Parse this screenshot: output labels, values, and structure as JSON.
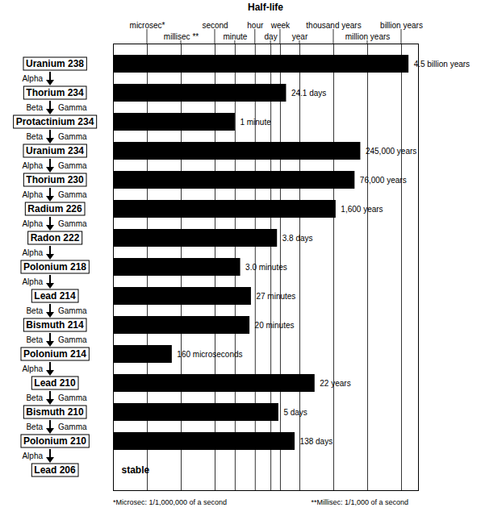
{
  "chart_data": {
    "type": "bar",
    "orientation": "horizontal",
    "log": "x",
    "title": "Half-life",
    "categories": [
      "Uranium 238",
      "Thorium 234",
      "Protactinium 234",
      "Uranium 234",
      "Thorium 230",
      "Radium 226",
      "Radon 222",
      "Polonium 218",
      "Lead 214",
      "Bismuth 214",
      "Polonium 214",
      "Lead 210",
      "Bismuth 210",
      "Polonium 210",
      "Lead 206"
    ],
    "values": [
      142009200000000000,
      2082240,
      60,
      7731612000000,
      2398377600000,
      50492160000,
      328320,
      180,
      1620,
      1200,
      0.00016,
      694267200,
      432000,
      11923200,
      null
    ],
    "value_labels": [
      "4.5 billion years",
      "24.1 days",
      "1 minute",
      "245,000 years",
      "76,000 years",
      "1,600 years",
      "3.8 days",
      "3.0 minutes",
      "27 minutes",
      "20 minutes",
      "160 microseconds",
      "22 years",
      "5 days",
      "138 days",
      "stable"
    ],
    "decay_modes": [
      [
        "Alpha"
      ],
      [
        "Beta",
        "Gamma"
      ],
      [
        "Beta",
        "Gamma"
      ],
      [
        "Alpha",
        "Gamma"
      ],
      [
        "Alpha",
        "Gamma"
      ],
      [
        "Alpha",
        "Gamma"
      ],
      [
        "Alpha"
      ],
      [
        "Alpha"
      ],
      [
        "Beta",
        "Gamma"
      ],
      [
        "Beta",
        "Gamma"
      ],
      [
        "Alpha"
      ],
      [
        "Beta",
        "Gamma"
      ],
      [
        "Beta",
        "Gamma"
      ],
      [
        "Alpha"
      ],
      null
    ],
    "color": "#000000",
    "xlim": [
      1e-09,
      1e+18
    ],
    "xticks": [
      {
        "value": 1e-06,
        "label": "microsec*"
      },
      {
        "value": 0.001,
        "label": "millisec **"
      },
      {
        "value": 1,
        "label": "second"
      },
      {
        "value": 60,
        "label": "minute"
      },
      {
        "value": 3600,
        "label": "hour"
      },
      {
        "value": 86400,
        "label": "day"
      },
      {
        "value": 604800,
        "label": "week"
      },
      {
        "value": 31557600,
        "label": "year"
      },
      {
        "value": 31557600000,
        "label": "thousand years"
      },
      {
        "value": 31557600000000,
        "label": "million years"
      },
      {
        "value": 31557600000000000,
        "label": "billion years"
      }
    ],
    "grid": true,
    "data_labels": true,
    "notes": [
      "*Microsec: 1/1,000,000 of a second",
      "**Millisec: 1/1,000 of a second"
    ]
  }
}
